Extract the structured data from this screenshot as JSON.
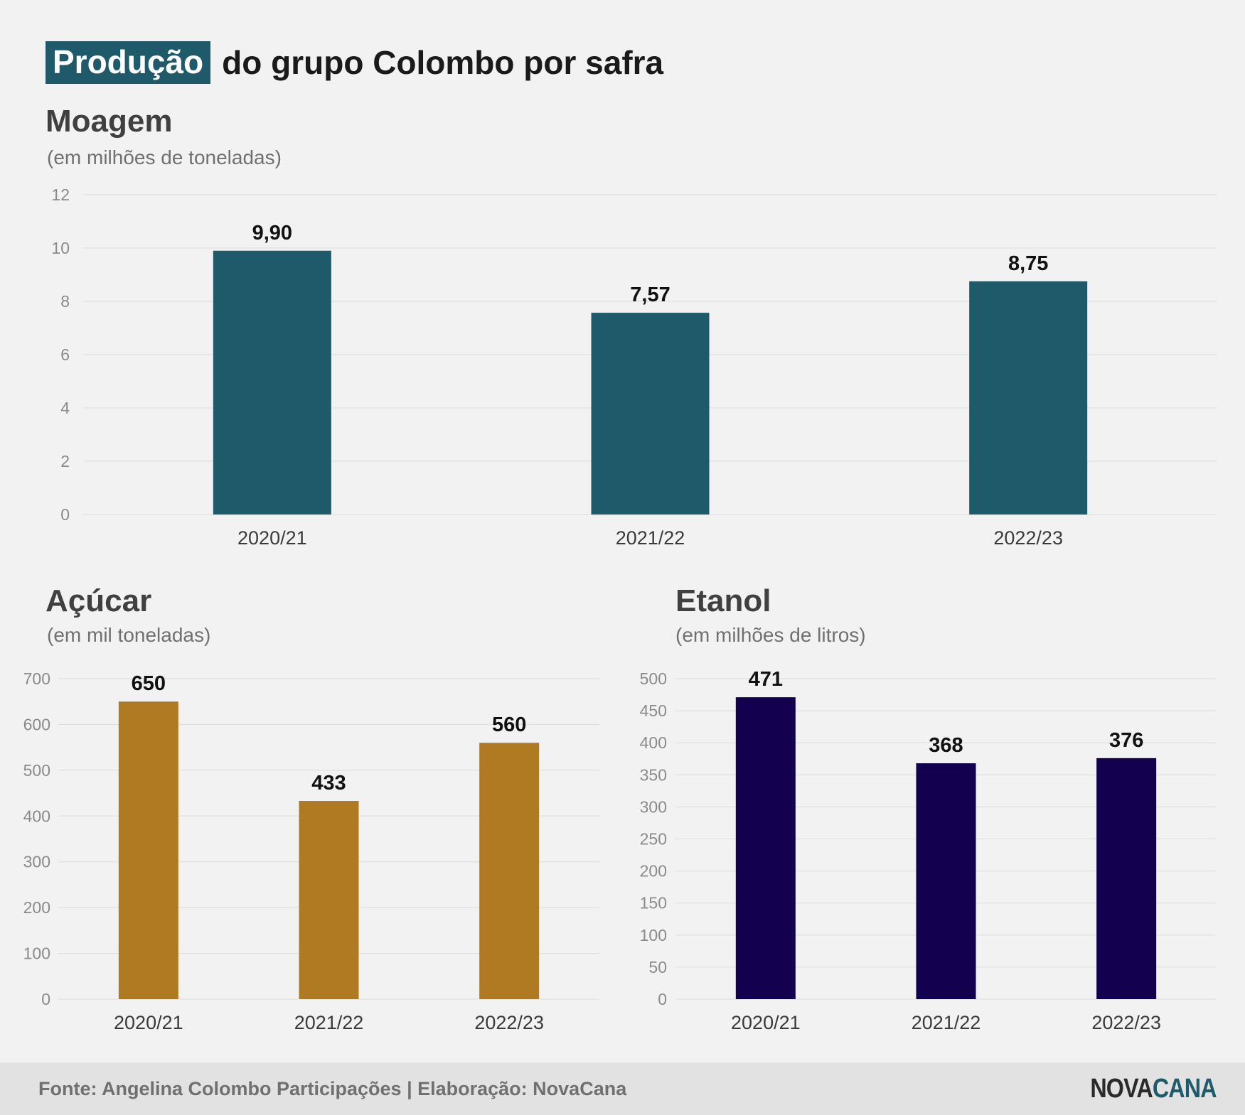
{
  "title": {
    "highlight": "Produção",
    "rest": "do grupo Colombo por safra"
  },
  "sections": {
    "moagem": {
      "title": "Moagem",
      "unit": "(em milhões de toneladas)"
    },
    "acucar": {
      "title": "Açúcar",
      "unit": "(em mil toneladas)"
    },
    "etanol": {
      "title": "Etanol",
      "unit": "(em milhões de litros)"
    }
  },
  "chart_data": [
    {
      "type": "bar",
      "title": "Moagem",
      "subtitle": "(em milhões de toneladas)",
      "categories": [
        "2020/21",
        "2021/22",
        "2022/23"
      ],
      "values": [
        9.9,
        7.57,
        8.75
      ],
      "value_labels": [
        "9,90",
        "7,57",
        "8,75"
      ],
      "ylim": [
        0,
        12
      ],
      "yticks": [
        0,
        2,
        4,
        6,
        8,
        10,
        12
      ],
      "color": "#1f5a6a",
      "grid": true
    },
    {
      "type": "bar",
      "title": "Açúcar",
      "subtitle": "(em mil toneladas)",
      "categories": [
        "2020/21",
        "2021/22",
        "2022/23"
      ],
      "values": [
        650,
        433,
        560
      ],
      "value_labels": [
        "650",
        "433",
        "560"
      ],
      "ylim": [
        0,
        700
      ],
      "yticks": [
        0,
        100,
        200,
        300,
        400,
        500,
        600,
        700
      ],
      "color": "#b07a22",
      "grid": true
    },
    {
      "type": "bar",
      "title": "Etanol",
      "subtitle": "(em milhões de litros)",
      "categories": [
        "2020/21",
        "2021/22",
        "2022/23"
      ],
      "values": [
        471,
        368,
        376
      ],
      "value_labels": [
        "471",
        "368",
        "376"
      ],
      "ylim": [
        0,
        500
      ],
      "yticks": [
        0,
        50,
        100,
        150,
        200,
        250,
        300,
        350,
        400,
        450,
        500
      ],
      "color": "#13004f",
      "grid": true
    }
  ],
  "footer": {
    "source": "Fonte: Angelina Colombo Participações | Elaboração: NovaCana",
    "logo_part1": "NOVA",
    "logo_part2": "CANA"
  }
}
